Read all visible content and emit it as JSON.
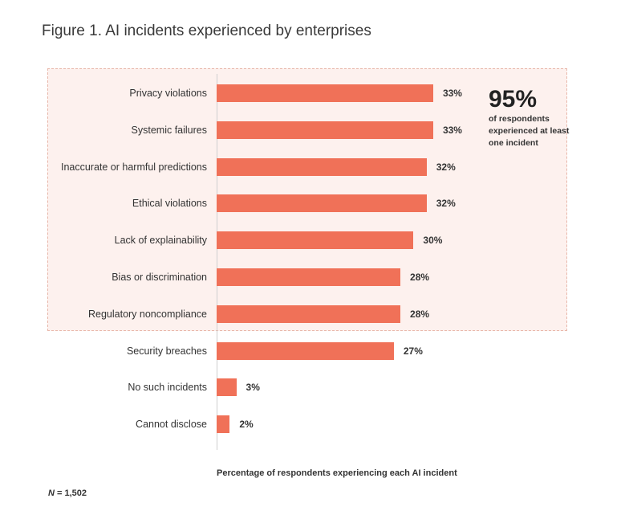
{
  "title": "Figure 1. AI incidents experienced by enterprises",
  "callout": {
    "value": "95%",
    "text": "of respondents experienced at least one incident"
  },
  "note": {
    "n_symbol": "N",
    "text": " = 1,502"
  },
  "colors": {
    "bar": "#f07158",
    "highlight_fill": "#fdf1ee",
    "highlight_border": "#e8b7aa"
  },
  "chart_data": {
    "type": "bar",
    "orientation": "horizontal",
    "title": "Figure 1. AI incidents experienced by enterprises",
    "xlabel": "Percentage of respondents experiencing each AI incident",
    "ylabel": "",
    "xlim": [
      0,
      40
    ],
    "grid": false,
    "legend": "none",
    "categories": [
      "Privacy violations",
      "Systemic failures",
      "Inaccurate or harmful predictions",
      "Ethical violations",
      "Lack of explainability",
      "Bias or discrimination",
      "Regulatory noncompliance",
      "Security breaches",
      "No such incidents",
      "Cannot disclose"
    ],
    "values": [
      33,
      33,
      32,
      32,
      30,
      28,
      28,
      27,
      3,
      2
    ],
    "value_labels": [
      "33%",
      "33%",
      "32%",
      "32%",
      "30%",
      "28%",
      "28%",
      "27%",
      "3%",
      "2%"
    ],
    "highlighted_categories": [
      "Privacy violations",
      "Systemic failures",
      "Inaccurate or harmful predictions",
      "Ethical violations",
      "Lack of explainability",
      "Bias or discrimination",
      "Regulatory noncompliance"
    ]
  }
}
